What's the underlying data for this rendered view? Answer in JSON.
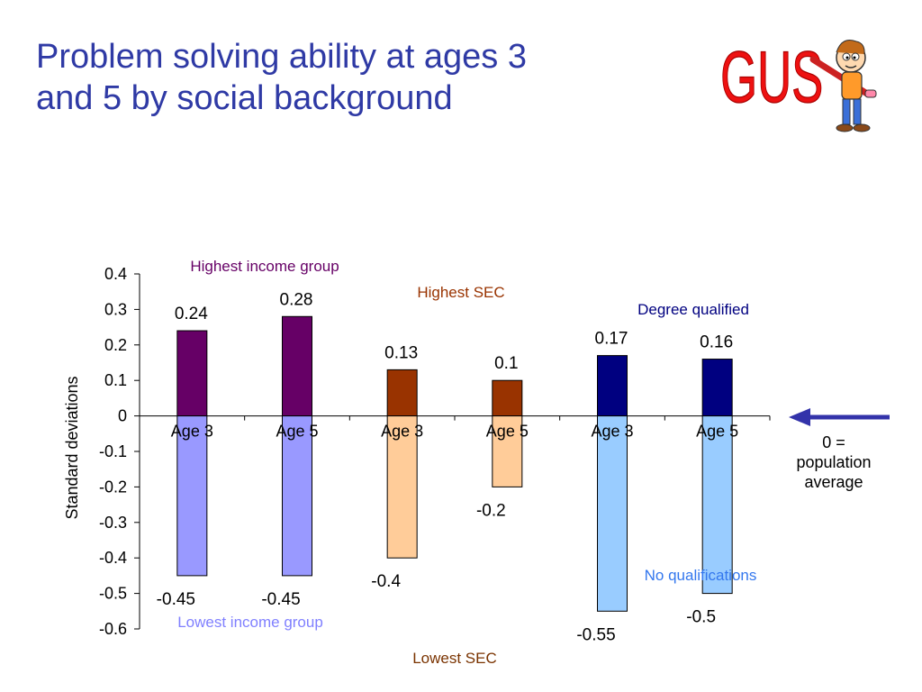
{
  "slide": {
    "title_line1": "Problem solving ability at ages 3",
    "title_line2": "and 5 by social background",
    "logo_text": "GUS"
  },
  "colors": {
    "title": "#2f3aa5",
    "income_pos": "#660066",
    "income_neg": "#9999ff",
    "sec_pos": "#993300",
    "sec_neg": "#ffcc99",
    "qual_pos": "#000080",
    "qual_neg": "#99ccff",
    "arrow": "#3333aa"
  },
  "chart_data": {
    "type": "bar",
    "ylabel": "Standard deviations",
    "ylim": [
      -0.6,
      0.4
    ],
    "yticks": [
      "0.4",
      "0.3",
      "0.2",
      "0.1",
      "0",
      "-0.1",
      "-0.2",
      "-0.3",
      "-0.4",
      "-0.5",
      "-0.6"
    ],
    "categories": [
      "Age 3",
      "Age 5",
      "Age 3",
      "Age 5",
      "Age 3",
      "Age 5"
    ],
    "series": [
      {
        "name": "Highest income group",
        "group": "income",
        "values": [
          0.24,
          0.28,
          null,
          null,
          null,
          null
        ]
      },
      {
        "name": "Lowest income group",
        "group": "income",
        "values": [
          -0.45,
          -0.45,
          null,
          null,
          null,
          null
        ]
      },
      {
        "name": "Highest SEC",
        "group": "sec",
        "values": [
          null,
          null,
          0.13,
          0.1,
          null,
          null
        ]
      },
      {
        "name": "Lowest SEC",
        "group": "sec",
        "values": [
          null,
          null,
          -0.4,
          -0.2,
          null,
          null
        ]
      },
      {
        "name": "Degree qualified",
        "group": "qual",
        "values": [
          null,
          null,
          null,
          null,
          0.17,
          0.16
        ]
      },
      {
        "name": "No qualifications",
        "group": "qual",
        "values": [
          null,
          null,
          null,
          null,
          -0.55,
          -0.5
        ]
      }
    ],
    "annotation": "0 = population average"
  }
}
